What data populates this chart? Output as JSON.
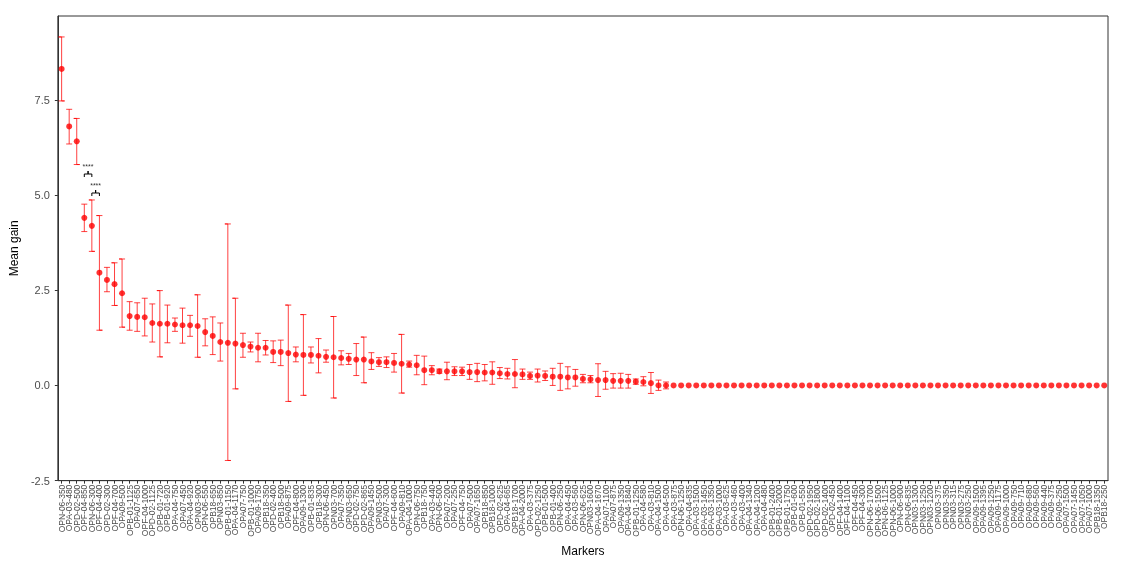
{
  "chart_data": {
    "type": "scatter",
    "xlabel": "Markers",
    "ylabel": "Mean gain",
    "categories": [
      "OPN-06-350",
      "OPA-03-480",
      "OPD-02-500",
      "OPF-04-850",
      "OPN-06-300",
      "OPF-04-400",
      "OPD-02-300",
      "OPF-04-700",
      "OPA09-500",
      "OPB-01-1125",
      "OPA07-650",
      "OPF-04-1000",
      "OPD-02-1125",
      "OPB-01-720",
      "OPB-01-920",
      "OPA-04-750",
      "OPA07-450",
      "OPA-04-920",
      "OPN03-900",
      "OPN-06-550",
      "OPB18-650",
      "OPN03-850",
      "OPB-01-1150",
      "OPA-04-1170",
      "OPA07-750",
      "OPB-01-1000",
      "OPA09-1750",
      "OPB18-350",
      "OPD-02-400",
      "OPB18-500",
      "OPA09-875",
      "OPF-04-800",
      "OPA09-1300",
      "OPB-01-835",
      "OPB18-300",
      "OPN-06-450",
      "OPN03-700",
      "OPA07-350",
      "OPN03-650",
      "OPD-02-750",
      "OPD-02-865",
      "OPA09-1450",
      "OPN03-500",
      "OPA07-300",
      "OPF-04-600",
      "OPA09-810",
      "OPA-04-1000",
      "OPN-06-750",
      "OPB18-750",
      "OPA-03-440",
      "OPN-06-500",
      "OPA07-200",
      "OPA07-250",
      "OPF-04-750",
      "OPA07-500",
      "OPA07-1650",
      "OPB18-850",
      "OPB18-1000",
      "OPD-02-625",
      "OPA-04-665",
      "OPB18-1700",
      "OPA-04-2000",
      "OPA-03-375",
      "OPD-02-1250",
      "OPB-01-500",
      "OPB-01-400",
      "OPN-06-250",
      "OPA-04-450",
      "OPA-03-560",
      "OPN-06-625",
      "OPN03-1600",
      "OPA-04-1670",
      "OPA07-1100",
      "OPA07-875",
      "OPA09-1350",
      "OPA-04-1840",
      "OPB-01-1250",
      "OPA-04-580",
      "OPA-03-810",
      "OPA-04-1500",
      "OPA-04-500",
      "OPA-03-875",
      "OPN-06-1250",
      "OPA-04-835",
      "OPA-03-1500",
      "OPA-03-1450",
      "OPA-03-1350",
      "OPA-03-1000",
      "OPA-03-625",
      "OPA-03-460",
      "OPA-03-400",
      "OPA-04-1340",
      "OPA-04-1200",
      "OPA-04-480",
      "OPB-01-2400",
      "OPB-01-2000",
      "OPB-01-1750",
      "OPB-01-600",
      "OPB-01-550",
      "OPD-02-1950",
      "OPD-02-1800",
      "OPD-02-1400",
      "OPD-02-450",
      "OPF-04-1400",
      "OPF-04-1100",
      "OPF-04-450",
      "OPF-04-300",
      "OPN-06-1700",
      "OPN-06-1500",
      "OPN-06-1125",
      "OPN-06-1000",
      "OPN-06-900",
      "OPN-06-835",
      "OPN03-1300",
      "OPN03-1250",
      "OPN03-1200",
      "OPN03-375",
      "OPN03-350",
      "OPN03-315",
      "OPN03-275",
      "OPN03-250",
      "OPA09-1500",
      "OPA09-1395",
      "OPA09-1250",
      "OPA09-1175",
      "OPA09-1000",
      "OPA09-750",
      "OPA09-710",
      "OPA09-680",
      "OPA09-560",
      "OPA09-440",
      "OPA09-375",
      "OPA09-250",
      "OPA07-1500",
      "OPA07-1450",
      "OPA07-1050",
      "OPA07-1000",
      "OPB18-1350",
      "OPB18-250"
    ],
    "values": [
      8.31,
      6.8,
      6.41,
      4.4,
      4.19,
      2.96,
      2.77,
      2.66,
      2.42,
      1.82,
      1.8,
      1.79,
      1.64,
      1.62,
      1.62,
      1.6,
      1.58,
      1.58,
      1.56,
      1.4,
      1.3,
      1.14,
      1.12,
      1.1,
      1.06,
      1.02,
      0.99,
      0.99,
      0.88,
      0.88,
      0.85,
      0.81,
      0.8,
      0.8,
      0.78,
      0.75,
      0.74,
      0.72,
      0.7,
      0.68,
      0.68,
      0.63,
      0.61,
      0.61,
      0.59,
      0.57,
      0.55,
      0.53,
      0.4,
      0.4,
      0.37,
      0.37,
      0.37,
      0.37,
      0.35,
      0.35,
      0.34,
      0.34,
      0.32,
      0.3,
      0.3,
      0.29,
      0.25,
      0.26,
      0.25,
      0.23,
      0.23,
      0.21,
      0.21,
      0.17,
      0.16,
      0.14,
      0.14,
      0.12,
      0.12,
      0.12,
      0.1,
      0.09,
      0.06,
      0,
      0,
      0,
      0,
      0,
      0,
      0,
      0,
      0,
      0,
      0,
      0,
      0,
      0,
      0,
      0,
      0,
      0,
      0,
      0,
      0,
      0,
      0,
      0,
      0,
      0,
      0,
      0,
      0,
      0,
      0,
      0,
      0,
      0,
      0,
      0,
      0,
      0,
      0,
      0,
      0,
      0,
      0,
      0,
      0,
      0,
      0,
      0,
      0,
      0,
      0,
      0,
      0,
      0,
      0,
      0,
      0,
      0,
      0,
      0
    ],
    "errors": [
      [
        7.47,
        9.15
      ],
      [
        6.34,
        7.25
      ],
      [
        5.8,
        7.01
      ],
      [
        4.04,
        4.76
      ],
      [
        3.52,
        4.87
      ],
      [
        1.45,
        4.46
      ],
      [
        2.46,
        3.1
      ],
      [
        2.1,
        3.22
      ],
      [
        1.53,
        3.32
      ],
      [
        1.45,
        2.2
      ],
      [
        1.42,
        2.17
      ],
      [
        1.3,
        2.29
      ],
      [
        1.14,
        2.14
      ],
      [
        0.75,
        2.49
      ],
      [
        1.12,
        2.11
      ],
      [
        1.42,
        1.77
      ],
      [
        1.11,
        2.03
      ],
      [
        1.29,
        1.84
      ],
      [
        0.74,
        2.38
      ],
      [
        1.04,
        1.75
      ],
      [
        0.81,
        1.8
      ],
      [
        0.64,
        1.64
      ],
      [
        -1.97,
        4.24
      ],
      [
        -0.09,
        2.29
      ],
      [
        0.74,
        1.37
      ],
      [
        0.88,
        1.14
      ],
      [
        0.62,
        1.37
      ],
      [
        0.8,
        1.18
      ],
      [
        0.6,
        1.17
      ],
      [
        0.52,
        1.19
      ],
      [
        -0.42,
        2.11
      ],
      [
        0.62,
        1.01
      ],
      [
        -0.26,
        1.86
      ],
      [
        0.59,
        1.01
      ],
      [
        0.33,
        1.23
      ],
      [
        0.61,
        0.93
      ],
      [
        -0.33,
        1.81
      ],
      [
        0.54,
        0.91
      ],
      [
        0.55,
        0.84
      ],
      [
        0.26,
        1.1
      ],
      [
        0.07,
        1.27
      ],
      [
        0.42,
        0.86
      ],
      [
        0.5,
        0.73
      ],
      [
        0.47,
        0.75
      ],
      [
        0.35,
        0.84
      ],
      [
        -0.2,
        1.34
      ],
      [
        0.48,
        0.64
      ],
      [
        0.28,
        0.79
      ],
      [
        0.02,
        0.77
      ],
      [
        0.28,
        0.52
      ],
      [
        0.32,
        0.43
      ],
      [
        0.15,
        0.61
      ],
      [
        0.26,
        0.49
      ],
      [
        0.26,
        0.48
      ],
      [
        0.16,
        0.55
      ],
      [
        0.1,
        0.58
      ],
      [
        0.12,
        0.55
      ],
      [
        0.03,
        0.62
      ],
      [
        0.18,
        0.47
      ],
      [
        0.17,
        0.45
      ],
      [
        -0.06,
        0.68
      ],
      [
        0.16,
        0.43
      ],
      [
        0.16,
        0.35
      ],
      [
        0.09,
        0.43
      ],
      [
        0.13,
        0.38
      ],
      [
        0,
        0.45
      ],
      [
        -0.13,
        0.58
      ],
      [
        -0.09,
        0.49
      ],
      [
        -0.02,
        0.42
      ],
      [
        0.07,
        0.29
      ],
      [
        0.07,
        0.26
      ],
      [
        -0.29,
        0.57
      ],
      [
        -0.1,
        0.37
      ],
      [
        -0.07,
        0.31
      ],
      [
        -0.07,
        0.32
      ],
      [
        -0.07,
        0.29
      ],
      [
        0.03,
        0.17
      ],
      [
        -0.01,
        0.23
      ],
      [
        -0.21,
        0.34
      ],
      [
        -0.13,
        0.14
      ],
      [
        -0.09,
        0.09
      ],
      null,
      null,
      null,
      null,
      null,
      null,
      null,
      null,
      null,
      null,
      null,
      null,
      null,
      null,
      null,
      null,
      null,
      null,
      null,
      null,
      null,
      null,
      null,
      null,
      null,
      null,
      null,
      null,
      null,
      null,
      null,
      null,
      null,
      null,
      null,
      null,
      null,
      null,
      null,
      null,
      null,
      null,
      null,
      null,
      null,
      null,
      null,
      null,
      null,
      null,
      null,
      null,
      null,
      null,
      null,
      null,
      null,
      null
    ],
    "color": "#ff0000",
    "ylim": [
      -2.5,
      9.7
    ],
    "yticks": [
      -2.5,
      {
        "value": 0,
        "label": "0.0"
      },
      2.5,
      {
        "value": 5,
        "label": "5.0"
      },
      7.5
    ],
    "annotations": [
      "****",
      "****"
    ],
    "marker": "circle",
    "grid": false
  }
}
